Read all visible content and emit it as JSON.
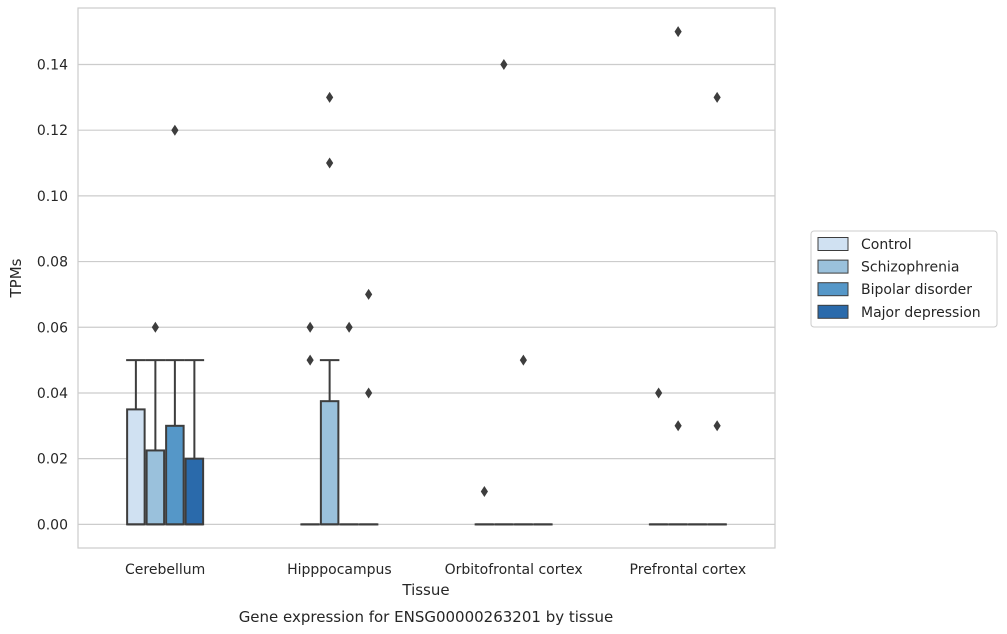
{
  "chart_data": {
    "type": "box",
    "title": "",
    "caption": "Gene expression for ENSG00000263201 by tissue",
    "xlabel": "Tissue",
    "ylabel": "TPMs",
    "ylim": [
      -0.0072,
      0.1572
    ],
    "yticks": [
      0.0,
      0.02,
      0.04,
      0.06,
      0.08,
      0.1,
      0.12,
      0.14
    ],
    "ytick_labels": [
      "0.00",
      "0.02",
      "0.04",
      "0.06",
      "0.08",
      "0.10",
      "0.12",
      "0.14"
    ],
    "grid": true,
    "legend_position": "right",
    "categories": [
      "Cerebellum",
      "Hipppocampus",
      "Orbitofrontal cortex",
      "Prefrontal cortex"
    ],
    "series": [
      {
        "name": "Control",
        "color": "#d0e1f2",
        "boxes": [
          {
            "q1": 0.0,
            "median": 0.0,
            "q3": 0.035,
            "whisker_low": 0.0,
            "whisker_high": 0.05,
            "outliers": []
          },
          {
            "q1": 0.0,
            "median": 0.0,
            "q3": 0.0,
            "whisker_low": 0.0,
            "whisker_high": 0.0,
            "outliers": [
              0.05,
              0.06
            ]
          },
          {
            "q1": 0.0,
            "median": 0.0,
            "q3": 0.0,
            "whisker_low": 0.0,
            "whisker_high": 0.0,
            "outliers": [
              0.01
            ]
          },
          {
            "q1": 0.0,
            "median": 0.0,
            "q3": 0.0,
            "whisker_low": 0.0,
            "whisker_high": 0.0,
            "outliers": [
              0.04
            ]
          }
        ]
      },
      {
        "name": "Schizophrenia",
        "color": "#9ac1dc",
        "boxes": [
          {
            "q1": 0.0,
            "median": 0.0,
            "q3": 0.0225,
            "whisker_low": 0.0,
            "whisker_high": 0.05,
            "outliers": [
              0.06
            ]
          },
          {
            "q1": 0.0,
            "median": 0.0,
            "q3": 0.0375,
            "whisker_low": 0.0,
            "whisker_high": 0.05,
            "outliers": [
              0.11,
              0.13
            ]
          },
          {
            "q1": 0.0,
            "median": 0.0,
            "q3": 0.0,
            "whisker_low": 0.0,
            "whisker_high": 0.0,
            "outliers": [
              0.14
            ]
          },
          {
            "q1": 0.0,
            "median": 0.0,
            "q3": 0.0,
            "whisker_low": 0.0,
            "whisker_high": 0.0,
            "outliers": [
              0.03,
              0.15
            ]
          }
        ]
      },
      {
        "name": "Bipolar disorder",
        "color": "#5597c8",
        "boxes": [
          {
            "q1": 0.0,
            "median": 0.0,
            "q3": 0.03,
            "whisker_low": 0.0,
            "whisker_high": 0.05,
            "outliers": [
              0.12
            ]
          },
          {
            "q1": 0.0,
            "median": 0.0,
            "q3": 0.0,
            "whisker_low": 0.0,
            "whisker_high": 0.0,
            "outliers": [
              0.06
            ]
          },
          {
            "q1": 0.0,
            "median": 0.0,
            "q3": 0.0,
            "whisker_low": 0.0,
            "whisker_high": 0.0,
            "outliers": [
              0.05
            ]
          },
          {
            "q1": 0.0,
            "median": 0.0,
            "q3": 0.0,
            "whisker_low": 0.0,
            "whisker_high": 0.0,
            "outliers": []
          }
        ]
      },
      {
        "name": "Major depression",
        "color": "#2a6aab",
        "boxes": [
          {
            "q1": 0.0,
            "median": 0.0,
            "q3": 0.02,
            "whisker_low": 0.0,
            "whisker_high": 0.05,
            "outliers": []
          },
          {
            "q1": 0.0,
            "median": 0.0,
            "q3": 0.0,
            "whisker_low": 0.0,
            "whisker_high": 0.0,
            "outliers": [
              0.04,
              0.07
            ]
          },
          {
            "q1": 0.0,
            "median": 0.0,
            "q3": 0.0,
            "whisker_low": 0.0,
            "whisker_high": 0.0,
            "outliers": []
          },
          {
            "q1": 0.0,
            "median": 0.0,
            "q3": 0.0,
            "whisker_low": 0.0,
            "whisker_high": 0.0,
            "outliers": [
              0.03,
              0.13
            ]
          }
        ]
      }
    ]
  }
}
